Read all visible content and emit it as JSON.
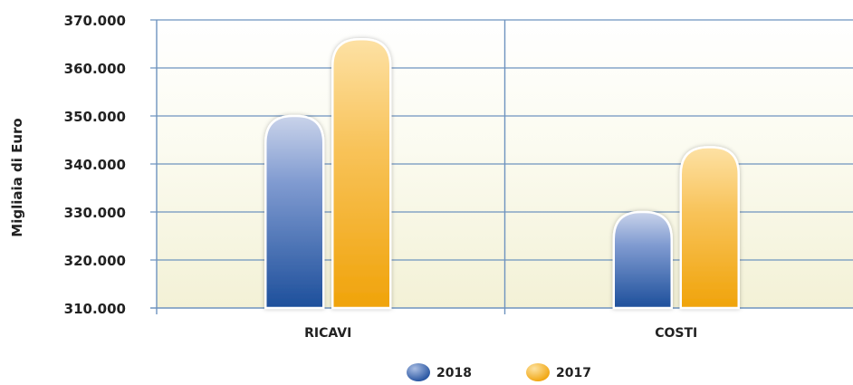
{
  "chart_data": {
    "type": "bar",
    "title": "",
    "xlabel": "",
    "ylabel": "Migliaia di Euro",
    "categories": [
      "RICAVI",
      "COSTI"
    ],
    "series": [
      {
        "name": "2018",
        "values": [
          350000,
          330000
        ],
        "color": "#2f5ba8"
      },
      {
        "name": "2017",
        "values": [
          366000,
          343500
        ],
        "color": "#f3a712"
      }
    ],
    "ylim": [
      310000,
      370000
    ],
    "yticks": [
      "310.000",
      "320.000",
      "330.000",
      "340.000",
      "350.000",
      "360.000",
      "370.000"
    ],
    "ytick_values": [
      310000,
      320000,
      330000,
      340000,
      350000,
      360000,
      370000
    ],
    "grid": true,
    "legend_position": "bottom-center",
    "colors": {
      "grid": "#6e93bf",
      "plot_bg_top": "#ffffff",
      "plot_bg_bottom": "#f3f1d8"
    }
  }
}
